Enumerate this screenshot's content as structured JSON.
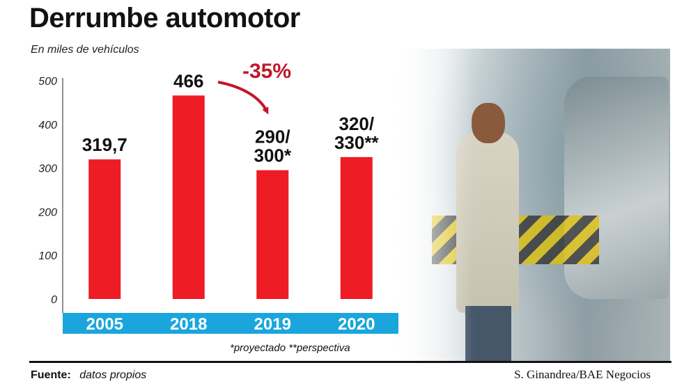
{
  "chart_data": {
    "type": "bar",
    "title": "Derrumbe automotor",
    "subtitle": "En miles de vehículos",
    "categories": [
      "2005",
      "2018",
      "2019",
      "2020"
    ],
    "values": [
      319.7,
      466,
      295,
      325
    ],
    "data_labels": [
      [
        "319,7"
      ],
      [
        "466"
      ],
      [
        "290/",
        "300*"
      ],
      [
        "320/",
        "330**"
      ]
    ],
    "yticks": [
      "0",
      "100",
      "200",
      "300",
      "400",
      "500"
    ],
    "ylim": [
      0,
      500
    ],
    "annotation": "-35%",
    "bar_color": "#ee1c25",
    "category_band_color": "#1aa6dc",
    "grid": false
  },
  "footnote": "*proyectado **perspectiva",
  "source_label": "Fuente:",
  "source_text": "datos propios",
  "credit": "S. Ginandrea/BAE Negocios"
}
